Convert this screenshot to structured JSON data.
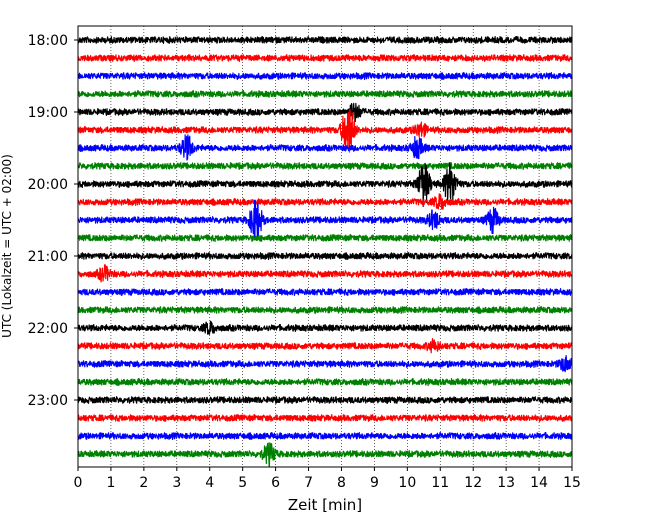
{
  "chart_data": {
    "type": "line",
    "title": "",
    "xlabel": "Zeit  [min]",
    "ylabel": "UTC (Lokalzeit = UTC + 02:00)",
    "xlim": [
      0,
      15
    ],
    "x_ticks": [
      "0",
      "1",
      "2",
      "3",
      "4",
      "5",
      "6",
      "7",
      "8",
      "9",
      "10",
      "11",
      "12",
      "13",
      "14",
      "15"
    ],
    "y_tick_labels": [
      "18:00",
      "19:00",
      "20:00",
      "21:00",
      "22:00",
      "23:00"
    ],
    "grid": "vertical-dotted",
    "legend": "none",
    "trace_colors": [
      "#000000",
      "#ff0000",
      "#0000ff",
      "#008000"
    ],
    "series": [
      {
        "start": "18:00",
        "color": "#000000",
        "events": []
      },
      {
        "start": "18:15",
        "color": "#ff0000",
        "events": []
      },
      {
        "start": "18:30",
        "color": "#0000ff",
        "events": []
      },
      {
        "start": "18:45",
        "color": "#008000",
        "events": []
      },
      {
        "start": "19:00",
        "color": "#000000",
        "events": [
          {
            "t": 8.4,
            "amp": 0.5
          }
        ]
      },
      {
        "start": "19:15",
        "color": "#ff0000",
        "events": [
          {
            "t": 8.2,
            "amp": 1.6
          },
          {
            "t": 10.4,
            "amp": 0.4
          }
        ]
      },
      {
        "start": "19:30",
        "color": "#0000ff",
        "events": [
          {
            "t": 3.3,
            "amp": 0.7
          },
          {
            "t": 10.3,
            "amp": 0.6
          }
        ]
      },
      {
        "start": "19:45",
        "color": "#008000",
        "events": []
      },
      {
        "start": "20:00",
        "color": "#000000",
        "events": [
          {
            "t": 10.5,
            "amp": 1.3
          },
          {
            "t": 11.3,
            "amp": 1.2
          }
        ]
      },
      {
        "start": "20:15",
        "color": "#ff0000",
        "events": [
          {
            "t": 11.0,
            "amp": 0.4
          }
        ]
      },
      {
        "start": "20:30",
        "color": "#0000ff",
        "events": [
          {
            "t": 5.4,
            "amp": 1.2
          },
          {
            "t": 10.8,
            "amp": 0.5
          },
          {
            "t": 12.6,
            "amp": 0.7
          }
        ]
      },
      {
        "start": "20:45",
        "color": "#008000",
        "events": []
      },
      {
        "start": "21:00",
        "color": "#000000",
        "events": []
      },
      {
        "start": "21:15",
        "color": "#ff0000",
        "events": [
          {
            "t": 0.8,
            "amp": 0.4
          }
        ]
      },
      {
        "start": "21:30",
        "color": "#0000ff",
        "events": []
      },
      {
        "start": "21:45",
        "color": "#008000",
        "events": []
      },
      {
        "start": "22:00",
        "color": "#000000",
        "events": [
          {
            "t": 4.0,
            "amp": 0.3
          }
        ]
      },
      {
        "start": "22:15",
        "color": "#ff0000",
        "events": [
          {
            "t": 10.8,
            "amp": 0.3
          }
        ]
      },
      {
        "start": "22:30",
        "color": "#0000ff",
        "events": [
          {
            "t": 14.8,
            "amp": 0.4
          }
        ]
      },
      {
        "start": "22:45",
        "color": "#008000",
        "events": []
      },
      {
        "start": "23:00",
        "color": "#000000",
        "events": []
      },
      {
        "start": "23:15",
        "color": "#ff0000",
        "events": []
      },
      {
        "start": "23:30",
        "color": "#0000ff",
        "events": []
      },
      {
        "start": "23:45",
        "color": "#008000",
        "events": [
          {
            "t": 5.8,
            "amp": 0.6
          }
        ]
      }
    ]
  }
}
